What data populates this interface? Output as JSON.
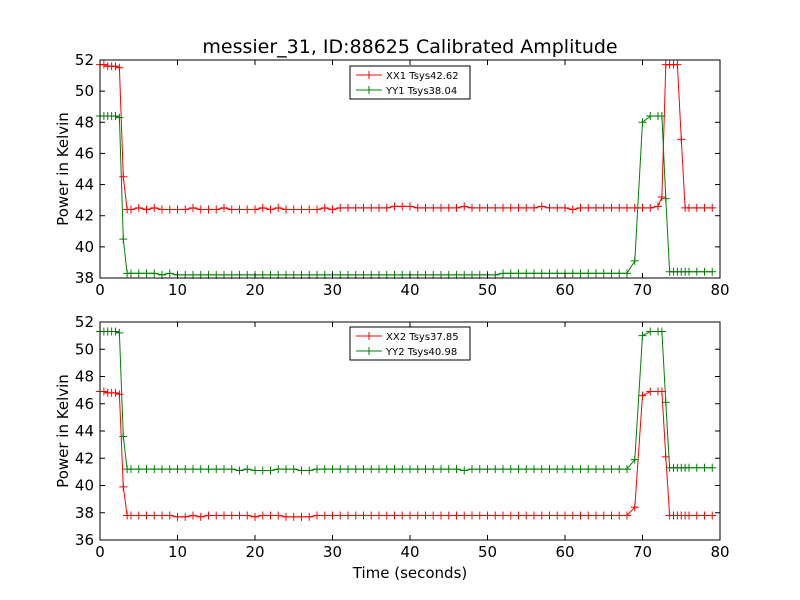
{
  "figure": {
    "title": "messier_31, ID:88625 Calibrated Amplitude"
  },
  "chart_data": [
    {
      "type": "line",
      "title": "messier_31, ID:88625 Calibrated Amplitude",
      "xlabel": "",
      "ylabel": "Power in Kelvin",
      "xlim": [
        0,
        80
      ],
      "ylim": [
        38,
        52
      ],
      "xticks": [
        0,
        10,
        20,
        30,
        40,
        50,
        60,
        70,
        80
      ],
      "yticks": [
        38,
        40,
        42,
        44,
        46,
        48,
        50,
        52
      ],
      "legend_position": "top-center",
      "grid": false,
      "series": [
        {
          "name": "XX1 Tsys42.62",
          "color": "#ff0000",
          "marker": "plus",
          "x": [
            0.0,
            0.5,
            1.0,
            1.5,
            2.0,
            2.5,
            3.0,
            3.5,
            4.0,
            5,
            6,
            7,
            8,
            9,
            10,
            11,
            12,
            13,
            14,
            15,
            16,
            17,
            18,
            19,
            20,
            21,
            22,
            23,
            24,
            25,
            26,
            27,
            28,
            29,
            30,
            31,
            32,
            33,
            34,
            35,
            36,
            37,
            38,
            39,
            40,
            41,
            42,
            43,
            44,
            45,
            46,
            47,
            48,
            49,
            50,
            51,
            52,
            53,
            54,
            55,
            56,
            57,
            58,
            59,
            60,
            61,
            62,
            63,
            64,
            65,
            66,
            67,
            68,
            69,
            70,
            71,
            72.0,
            72.5,
            73.0,
            73.5,
            74.0,
            74.5,
            75.0,
            75.5,
            76.0,
            77,
            78,
            79
          ],
          "y": [
            51.7,
            51.7,
            51.6,
            51.6,
            51.6,
            51.5,
            44.5,
            42.4,
            42.4,
            42.5,
            42.4,
            42.5,
            42.4,
            42.4,
            42.4,
            42.4,
            42.5,
            42.4,
            42.4,
            42.4,
            42.5,
            42.4,
            42.4,
            42.4,
            42.4,
            42.5,
            42.4,
            42.5,
            42.4,
            42.4,
            42.4,
            42.4,
            42.4,
            42.5,
            42.4,
            42.5,
            42.5,
            42.5,
            42.5,
            42.5,
            42.5,
            42.5,
            42.6,
            42.6,
            42.6,
            42.5,
            42.5,
            42.5,
            42.5,
            42.5,
            42.5,
            42.6,
            42.5,
            42.5,
            42.5,
            42.5,
            42.5,
            42.5,
            42.5,
            42.5,
            42.5,
            42.6,
            42.5,
            42.5,
            42.5,
            42.4,
            42.5,
            42.5,
            42.5,
            42.5,
            42.5,
            42.5,
            42.5,
            42.5,
            42.5,
            42.5,
            42.6,
            43.2,
            51.7,
            51.7,
            51.7,
            51.7,
            46.9,
            42.5,
            42.5,
            42.5,
            42.5,
            42.5
          ]
        },
        {
          "name": "YY1 Tsys38.04",
          "color": "#008000",
          "marker": "plus",
          "x": [
            0.0,
            0.5,
            1.0,
            1.5,
            2.0,
            2.5,
            3.0,
            3.5,
            4.0,
            5,
            6,
            7,
            8,
            9,
            10,
            11,
            12,
            13,
            14,
            15,
            16,
            17,
            18,
            19,
            20,
            21,
            22,
            23,
            24,
            25,
            26,
            27,
            28,
            29,
            30,
            31,
            32,
            33,
            34,
            35,
            36,
            37,
            38,
            39,
            40,
            41,
            42,
            43,
            44,
            45,
            46,
            47,
            48,
            49,
            50,
            51,
            52,
            53,
            54,
            55,
            56,
            57,
            58,
            59,
            60,
            61,
            62,
            63,
            64,
            65,
            66,
            67,
            68,
            69,
            70,
            71,
            72.0,
            72.5,
            73.0,
            73.5,
            74.0,
            74.5,
            75.0,
            75.5,
            76.0,
            77,
            78,
            79
          ],
          "y": [
            48.4,
            48.4,
            48.4,
            48.4,
            48.4,
            48.3,
            40.5,
            38.3,
            38.3,
            38.3,
            38.3,
            38.3,
            38.2,
            38.3,
            38.2,
            38.2,
            38.2,
            38.2,
            38.2,
            38.2,
            38.2,
            38.2,
            38.2,
            38.2,
            38.2,
            38.2,
            38.2,
            38.2,
            38.2,
            38.2,
            38.2,
            38.2,
            38.2,
            38.2,
            38.2,
            38.2,
            38.2,
            38.2,
            38.2,
            38.2,
            38.2,
            38.2,
            38.2,
            38.2,
            38.2,
            38.2,
            38.2,
            38.2,
            38.2,
            38.2,
            38.2,
            38.2,
            38.2,
            38.2,
            38.2,
            38.2,
            38.3,
            38.3,
            38.3,
            38.3,
            38.3,
            38.3,
            38.3,
            38.3,
            38.3,
            38.3,
            38.3,
            38.3,
            38.3,
            38.3,
            38.3,
            38.3,
            38.3,
            39.1,
            48.0,
            48.4,
            48.4,
            48.4,
            43.1,
            38.4,
            38.4,
            38.4,
            38.4,
            38.4,
            38.4,
            38.4,
            38.4,
            38.4
          ]
        }
      ]
    },
    {
      "type": "line",
      "title": "",
      "xlabel": "Time (seconds)",
      "ylabel": "Power in Kelvin",
      "xlim": [
        0,
        80
      ],
      "ylim": [
        36,
        52
      ],
      "xticks": [
        0,
        10,
        20,
        30,
        40,
        50,
        60,
        70,
        80
      ],
      "yticks": [
        36,
        38,
        40,
        42,
        44,
        46,
        48,
        50,
        52
      ],
      "legend_position": "top-center",
      "grid": false,
      "series": [
        {
          "name": "XX2 Tsys37.85",
          "color": "#ff0000",
          "marker": "plus",
          "x": [
            0.0,
            0.5,
            1.0,
            1.5,
            2.0,
            2.5,
            3.0,
            3.5,
            4.0,
            5,
            6,
            7,
            8,
            9,
            10,
            11,
            12,
            13,
            14,
            15,
            16,
            17,
            18,
            19,
            20,
            21,
            22,
            23,
            24,
            25,
            26,
            27,
            28,
            29,
            30,
            31,
            32,
            33,
            34,
            35,
            36,
            37,
            38,
            39,
            40,
            41,
            42,
            43,
            44,
            45,
            46,
            47,
            48,
            49,
            50,
            51,
            52,
            53,
            54,
            55,
            56,
            57,
            58,
            59,
            60,
            61,
            62,
            63,
            64,
            65,
            66,
            67,
            68,
            69,
            70,
            71,
            72.0,
            72.5,
            73.0,
            73.5,
            74.0,
            74.5,
            75.0,
            75.5,
            76.0,
            77,
            78,
            79
          ],
          "y": [
            46.9,
            46.9,
            46.8,
            46.8,
            46.8,
            46.7,
            39.9,
            37.8,
            37.8,
            37.8,
            37.8,
            37.8,
            37.8,
            37.8,
            37.7,
            37.7,
            37.8,
            37.7,
            37.8,
            37.8,
            37.8,
            37.8,
            37.8,
            37.8,
            37.7,
            37.8,
            37.8,
            37.8,
            37.7,
            37.7,
            37.7,
            37.7,
            37.8,
            37.8,
            37.8,
            37.8,
            37.8,
            37.8,
            37.8,
            37.8,
            37.8,
            37.8,
            37.8,
            37.8,
            37.8,
            37.8,
            37.8,
            37.8,
            37.8,
            37.8,
            37.8,
            37.8,
            37.8,
            37.8,
            37.8,
            37.8,
            37.8,
            37.8,
            37.8,
            37.8,
            37.8,
            37.8,
            37.8,
            37.8,
            37.8,
            37.8,
            37.8,
            37.8,
            37.8,
            37.8,
            37.8,
            37.8,
            37.8,
            38.4,
            46.6,
            46.9,
            46.9,
            46.9,
            42.1,
            37.8,
            37.8,
            37.8,
            37.8,
            37.8,
            37.8,
            37.8,
            37.8,
            37.8
          ]
        },
        {
          "name": "YY2 Tsys40.98",
          "color": "#008000",
          "marker": "plus",
          "x": [
            0.0,
            0.5,
            1.0,
            1.5,
            2.0,
            2.5,
            3.0,
            3.5,
            4.0,
            5,
            6,
            7,
            8,
            9,
            10,
            11,
            12,
            13,
            14,
            15,
            16,
            17,
            18,
            19,
            20,
            21,
            22,
            23,
            24,
            25,
            26,
            27,
            28,
            29,
            30,
            31,
            32,
            33,
            34,
            35,
            36,
            37,
            38,
            39,
            40,
            41,
            42,
            43,
            44,
            45,
            46,
            47,
            48,
            49,
            50,
            51,
            52,
            53,
            54,
            55,
            56,
            57,
            58,
            59,
            60,
            61,
            62,
            63,
            64,
            65,
            66,
            67,
            68,
            69,
            70,
            71,
            72.0,
            72.5,
            73.0,
            73.5,
            74.0,
            74.5,
            75.0,
            75.5,
            76.0,
            77,
            78,
            79
          ],
          "y": [
            51.3,
            51.3,
            51.3,
            51.3,
            51.3,
            51.2,
            43.6,
            41.2,
            41.2,
            41.2,
            41.2,
            41.2,
            41.2,
            41.2,
            41.2,
            41.2,
            41.2,
            41.2,
            41.2,
            41.2,
            41.2,
            41.2,
            41.1,
            41.2,
            41.1,
            41.1,
            41.1,
            41.2,
            41.2,
            41.2,
            41.1,
            41.1,
            41.2,
            41.2,
            41.2,
            41.2,
            41.2,
            41.2,
            41.2,
            41.2,
            41.2,
            41.2,
            41.2,
            41.2,
            41.2,
            41.2,
            41.2,
            41.2,
            41.2,
            41.2,
            41.2,
            41.1,
            41.2,
            41.2,
            41.2,
            41.2,
            41.2,
            41.2,
            41.2,
            41.2,
            41.2,
            41.2,
            41.2,
            41.2,
            41.2,
            41.2,
            41.2,
            41.2,
            41.2,
            41.2,
            41.2,
            41.2,
            41.2,
            41.9,
            51.0,
            51.3,
            51.3,
            51.3,
            46.1,
            41.3,
            41.3,
            41.3,
            41.3,
            41.3,
            41.3,
            41.3,
            41.3,
            41.3
          ]
        }
      ]
    }
  ]
}
